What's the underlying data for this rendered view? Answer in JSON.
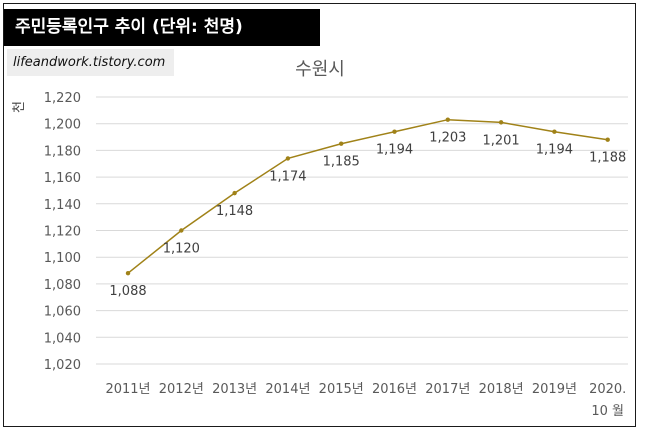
{
  "banner": "주민등록인구 추이 (단위: 천명)",
  "watermark": "lifeandwork.tistory.com",
  "chart_data": {
    "type": "line",
    "title": "수원시",
    "ylabel": "천",
    "xlabel": "",
    "categories": [
      "2011년",
      "2012년",
      "2013년",
      "2014년",
      "2015년",
      "2016년",
      "2017년",
      "2018년",
      "2019년",
      "2020.\n10 월"
    ],
    "values": [
      1088,
      1120,
      1148,
      1174,
      1185,
      1194,
      1203,
      1201,
      1194,
      1188
    ],
    "data_labels": [
      "1,088",
      "1,120",
      "1,148",
      "1,174",
      "1,185",
      "1,194",
      "1,203",
      "1,201",
      "1,194",
      "1,188"
    ],
    "ylim": [
      1020,
      1220
    ],
    "yticks": [
      1020,
      1040,
      1060,
      1080,
      1100,
      1120,
      1140,
      1160,
      1180,
      1200,
      1220
    ],
    "ytick_labels": [
      "1,020",
      "1,040",
      "1,060",
      "1,080",
      "1,100",
      "1,120",
      "1,140",
      "1,160",
      "1,180",
      "1,200",
      "1,220"
    ],
    "grid": true,
    "line_color": "#a08218"
  }
}
